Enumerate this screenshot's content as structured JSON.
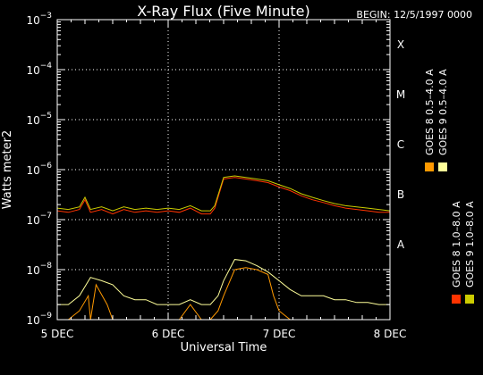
{
  "chart_data": {
    "type": "line",
    "title": "X-Ray Flux (Five Minute)",
    "begin_label": "BEGIN: 12/5/1997 0000",
    "xlabel": "Universal Time",
    "ylabel": "Watts meter2",
    "x_ticks": [
      "5 DEC",
      "6 DEC",
      "7 DEC",
      "8 DEC"
    ],
    "x_range_days": [
      0,
      3
    ],
    "y_log_range": [
      -9,
      -3
    ],
    "y_ticks": [
      {
        "base": "10",
        "exp": "−3",
        "log": -3
      },
      {
        "base": "10",
        "exp": "−4",
        "log": -4
      },
      {
        "base": "10",
        "exp": "−5",
        "log": -5
      },
      {
        "base": "10",
        "exp": "−6",
        "log": -6
      },
      {
        "base": "10",
        "exp": "−7",
        "log": -7
      },
      {
        "base": "10",
        "exp": "−8",
        "log": -8
      },
      {
        "base": "10",
        "exp": "−9",
        "log": -9
      }
    ],
    "flare_classes": [
      {
        "label": "X",
        "log": -3.5
      },
      {
        "label": "M",
        "log": -4.5
      },
      {
        "label": "C",
        "log": -5.5
      },
      {
        "label": "B",
        "log": -6.5
      },
      {
        "label": "A",
        "log": -7.5
      }
    ],
    "grid": {
      "horizontal_dotted_at_log": [
        -4,
        -5,
        -6,
        -7,
        -8
      ],
      "vertical_dotted_at_day": [
        1,
        2
      ]
    },
    "legend_position": "right",
    "series": [
      {
        "name": "GOES 8 1.0–8.0 A",
        "color": "#ff3300",
        "x": [
          0,
          0.1,
          0.2,
          0.25,
          0.3,
          0.4,
          0.5,
          0.6,
          0.7,
          0.8,
          0.9,
          1.0,
          1.1,
          1.2,
          1.3,
          1.38,
          1.42,
          1.5,
          1.6,
          1.7,
          1.8,
          1.9,
          2.0,
          2.1,
          2.2,
          2.3,
          2.4,
          2.5,
          2.6,
          2.7,
          2.8,
          2.9,
          3.0
        ],
        "values": [
          1.5e-07,
          1.4e-07,
          1.6e-07,
          2.5e-07,
          1.4e-07,
          1.6e-07,
          1.3e-07,
          1.6e-07,
          1.4e-07,
          1.5e-07,
          1.4e-07,
          1.5e-07,
          1.4e-07,
          1.7e-07,
          1.3e-07,
          1.3e-07,
          1.7e-07,
          6.5e-07,
          7e-07,
          6.5e-07,
          6e-07,
          5.5e-07,
          4.5e-07,
          3.8e-07,
          3e-07,
          2.5e-07,
          2.2e-07,
          1.9e-07,
          1.7e-07,
          1.6e-07,
          1.5e-07,
          1.4e-07,
          1.4e-07
        ]
      },
      {
        "name": "GOES 8 0.5–4.0 A",
        "color": "#ff9900",
        "x": [
          0,
          0.1,
          0.2,
          0.28,
          0.3,
          0.35,
          0.45,
          0.5,
          0.6,
          0.7,
          0.8,
          0.9,
          1.0,
          1.1,
          1.2,
          1.3,
          1.38,
          1.45,
          1.5,
          1.6,
          1.7,
          1.8,
          1.9,
          1.95,
          2.0,
          2.1,
          2.2,
          2.3,
          2.5,
          2.7,
          2.9,
          3.0
        ],
        "values": [
          1e-09,
          1e-09,
          1.5e-09,
          3e-09,
          1e-09,
          5e-09,
          2e-09,
          1e-09,
          1e-09,
          8e-10,
          1e-09,
          1e-09,
          1e-09,
          1e-09,
          2e-09,
          1e-09,
          1e-09,
          1.5e-09,
          3e-09,
          1e-08,
          1.1e-08,
          1e-08,
          8e-09,
          3e-09,
          1.5e-09,
          1e-09,
          1e-09,
          1e-09,
          1e-09,
          1e-09,
          1e-09,
          1e-09
        ]
      },
      {
        "name": "GOES 9 1.0–8.0 A",
        "color": "#cccc00",
        "x": [
          0,
          0.1,
          0.2,
          0.25,
          0.3,
          0.4,
          0.5,
          0.6,
          0.7,
          0.8,
          0.9,
          1.0,
          1.1,
          1.2,
          1.3,
          1.38,
          1.42,
          1.5,
          1.6,
          1.7,
          1.8,
          1.9,
          2.0,
          2.1,
          2.2,
          2.3,
          2.4,
          2.5,
          2.6,
          2.7,
          2.8,
          2.9,
          3.0
        ],
        "values": [
          1.7e-07,
          1.6e-07,
          1.8e-07,
          2.8e-07,
          1.6e-07,
          1.8e-07,
          1.5e-07,
          1.8e-07,
          1.6e-07,
          1.7e-07,
          1.6e-07,
          1.7e-07,
          1.6e-07,
          1.9e-07,
          1.5e-07,
          1.5e-07,
          1.9e-07,
          7e-07,
          7.5e-07,
          7e-07,
          6.5e-07,
          6e-07,
          5e-07,
          4.2e-07,
          3.3e-07,
          2.8e-07,
          2.4e-07,
          2.1e-07,
          1.9e-07,
          1.8e-07,
          1.7e-07,
          1.6e-07,
          1.5e-07
        ]
      },
      {
        "name": "GOES 9 0.5–4.0 A",
        "color": "#ffff99",
        "x": [
          0,
          0.1,
          0.2,
          0.3,
          0.4,
          0.5,
          0.6,
          0.7,
          0.8,
          0.9,
          1.0,
          1.1,
          1.2,
          1.3,
          1.38,
          1.45,
          1.5,
          1.6,
          1.7,
          1.8,
          1.9,
          2.0,
          2.1,
          2.2,
          2.3,
          2.4,
          2.5,
          2.6,
          2.7,
          2.8,
          2.9,
          3.0
        ],
        "values": [
          2e-09,
          2e-09,
          3e-09,
          7e-09,
          6e-09,
          5e-09,
          3e-09,
          2.5e-09,
          2.5e-09,
          2e-09,
          2e-09,
          2e-09,
          2.5e-09,
          2e-09,
          2e-09,
          3e-09,
          6e-09,
          1.6e-08,
          1.5e-08,
          1.2e-08,
          9e-09,
          6e-09,
          4e-09,
          3e-09,
          3e-09,
          3e-09,
          2.5e-09,
          2.5e-09,
          2.2e-09,
          2.2e-09,
          2e-09,
          2e-09
        ]
      }
    ]
  }
}
